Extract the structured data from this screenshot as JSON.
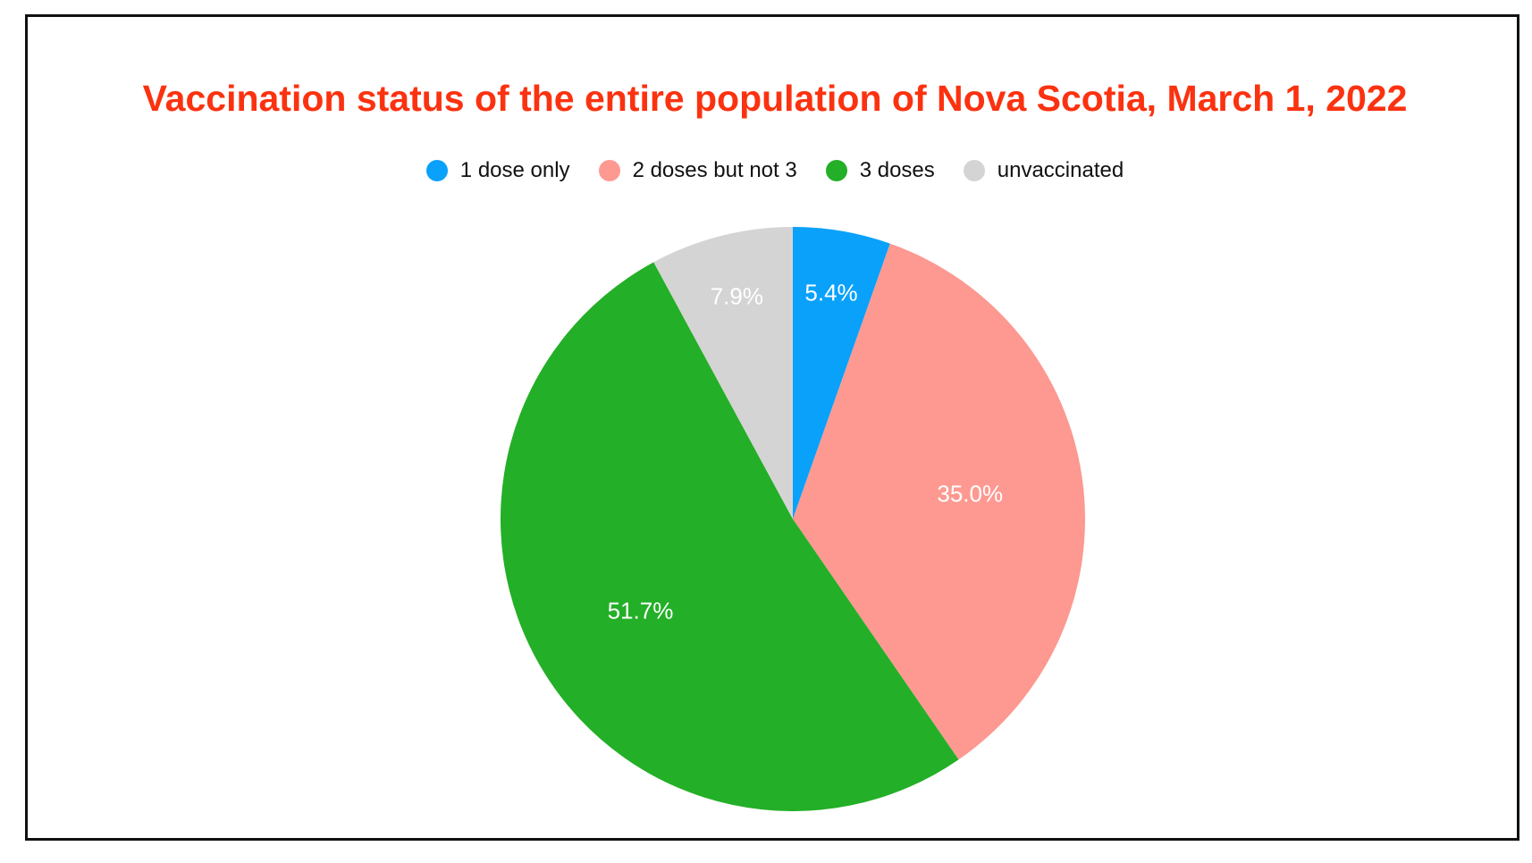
{
  "chart_data": {
    "type": "pie",
    "title": "Vaccination status of the entire population of Nova Scotia, March 1, 2022",
    "legend_position": "top",
    "slices": [
      {
        "name": "1 dose only",
        "value": 5.4,
        "label": "5.4%",
        "color": "#0aa1fb"
      },
      {
        "name": "2 doses but not 3",
        "value": 35.0,
        "label": "35.0%",
        "color": "#fd9991"
      },
      {
        "name": "3 doses",
        "value": 51.7,
        "label": "51.7%",
        "color": "#23af27"
      },
      {
        "name": "unvaccinated",
        "value": 7.9,
        "label": "7.9%",
        "color": "#d4d4d4"
      }
    ]
  }
}
